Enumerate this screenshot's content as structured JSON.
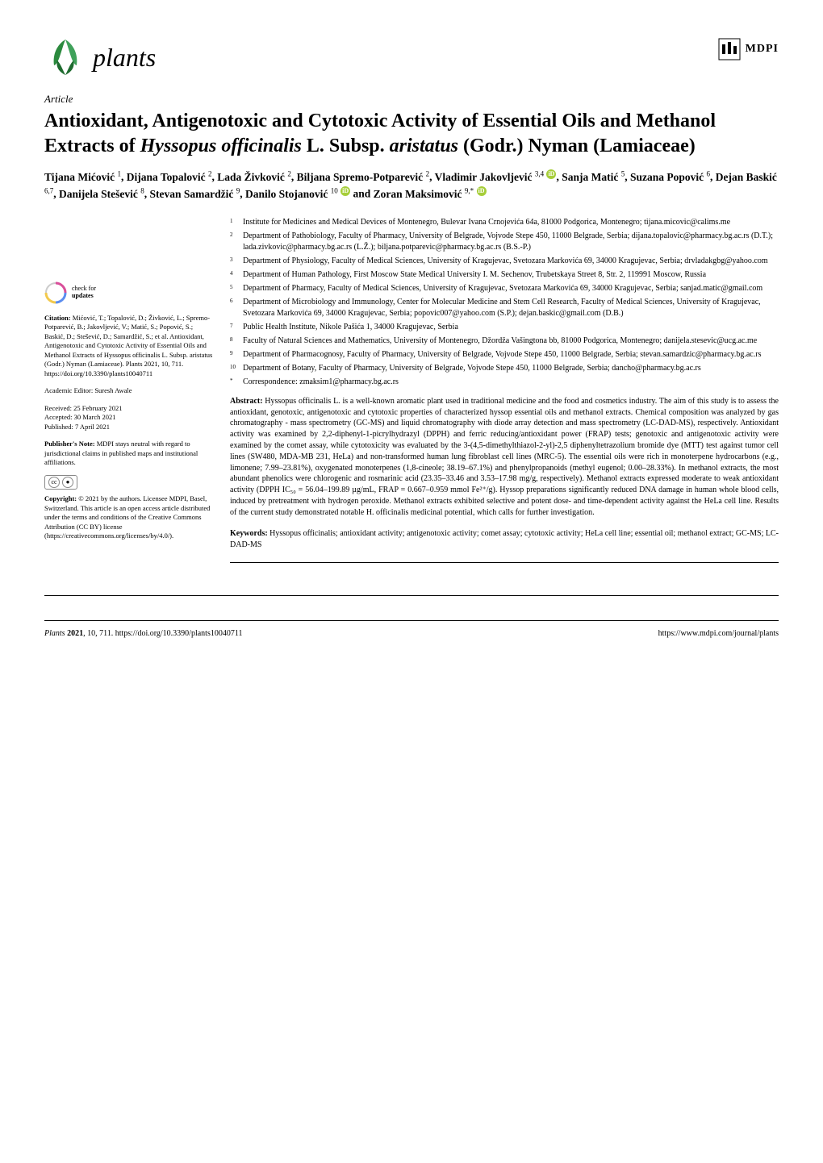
{
  "journal": {
    "name": "plants",
    "publisher": "MDPI"
  },
  "article_type": "Article",
  "title_parts": {
    "pre": "Antioxidant, Antigenotoxic and Cytotoxic Activity of Essential Oils and Methanol Extracts of ",
    "species": "Hyssopus officinalis",
    "mid": " L. Subsp. ",
    "subsp": "aristatus",
    "post": " (Godr.) Nyman (Lamiaceae)"
  },
  "authors_html": "Tijana Mićović ¹, Dijana Topalović ², Lada Živković ², Biljana Spremo-Potparević ², Vladimir Jakovljević ³,⁴ 🟢, Sanja Matić ⁵, Suzana Popović ⁶, Dejan Baskić ⁶,⁷, Danijela Stešević ⁸, Stevan Samardžić ⁹, Danilo Stojanović ¹⁰ 🟢 and Zoran Maksimović ⁹,* 🟢",
  "authors": [
    {
      "name": "Tijana Mićović",
      "aff": "1"
    },
    {
      "name": "Dijana Topalović",
      "aff": "2"
    },
    {
      "name": "Lada Živković",
      "aff": "2"
    },
    {
      "name": "Biljana Spremo-Potparević",
      "aff": "2"
    },
    {
      "name": "Vladimir Jakovljević",
      "aff": "3,4",
      "orcid": true
    },
    {
      "name": "Sanja Matić",
      "aff": "5"
    },
    {
      "name": "Suzana Popović",
      "aff": "6"
    },
    {
      "name": "Dejan Baskić",
      "aff": "6,7"
    },
    {
      "name": "Danijela Stešević",
      "aff": "8"
    },
    {
      "name": "Stevan Samardžić",
      "aff": "9"
    },
    {
      "name": "Danilo Stojanović",
      "aff": "10",
      "orcid": true
    },
    {
      "name": "Zoran Maksimović",
      "aff": "9,*",
      "orcid": true
    }
  ],
  "affiliations": [
    {
      "n": "1",
      "text": "Institute for Medicines and Medical Devices of Montenegro, Bulevar Ivana Crnojevića 64a, 81000 Podgorica, Montenegro; tijana.micovic@calims.me"
    },
    {
      "n": "2",
      "text": "Department of Pathobiology, Faculty of Pharmacy, University of Belgrade, Vojvode Stepe 450, 11000 Belgrade, Serbia; dijana.topalovic@pharmacy.bg.ac.rs (D.T.); lada.zivkovic@pharmacy.bg.ac.rs (L.Ž.); biljana.potparevic@pharmacy.bg.ac.rs (B.S.-P.)"
    },
    {
      "n": "3",
      "text": "Department of Physiology, Faculty of Medical Sciences, University of Kragujevac, Svetozara Markovića 69, 34000 Kragujevac, Serbia; drvladakgbg@yahoo.com"
    },
    {
      "n": "4",
      "text": "Department of Human Pathology, First Moscow State Medical University I. M. Sechenov, Trubetskaya Street 8, Str. 2, 119991 Moscow, Russia"
    },
    {
      "n": "5",
      "text": "Department of Pharmacy, Faculty of Medical Sciences, University of Kragujevac, Svetozara Markovića 69, 34000 Kragujevac, Serbia; sanjad.matic@gmail.com"
    },
    {
      "n": "6",
      "text": "Department of Microbiology and Immunology, Center for Molecular Medicine and Stem Cell Research, Faculty of Medical Sciences, University of Kragujevac, Svetozara Markovića 69, 34000 Kragujevac, Serbia; popovic007@yahoo.com (S.P.); dejan.baskic@gmail.com (D.B.)"
    },
    {
      "n": "7",
      "text": "Public Health Institute, Nikole Pašića 1, 34000 Kragujevac, Serbia"
    },
    {
      "n": "8",
      "text": "Faculty of Natural Sciences and Mathematics, University of Montenegro, Džordža Vašingtona bb, 81000 Podgorica, Montenegro; danijela.stesevic@ucg.ac.me"
    },
    {
      "n": "9",
      "text": "Department of Pharmacognosy, Faculty of Pharmacy, University of Belgrade, Vojvode Stepe 450, 11000 Belgrade, Serbia; stevan.samardzic@pharmacy.bg.ac.rs"
    },
    {
      "n": "10",
      "text": "Department of Botany, Faculty of Pharmacy, University of Belgrade, Vojvode Stepe 450, 11000 Belgrade, Serbia; dancho@pharmacy.bg.ac.rs"
    },
    {
      "n": "*",
      "text": "Correspondence: zmaksim1@pharmacy.bg.ac.rs"
    }
  ],
  "abstract": {
    "label": "Abstract:",
    "text": " Hyssopus officinalis L. is a well-known aromatic plant used in traditional medicine and the food and cosmetics industry. The aim of this study is to assess the antioxidant, genotoxic, antigenotoxic and cytotoxic properties of characterized hyssop essential oils and methanol extracts. Chemical composition was analyzed by gas chromatography - mass spectrometry (GC-MS) and liquid chromatography with diode array detection and mass spectrometry (LC-DAD-MS), respectively. Antioxidant activity was examined by 2,2-diphenyl-1-picrylhydrazyl (DPPH) and ferric reducing/antioxidant power (FRAP) tests; genotoxic and antigenotoxic activity were examined by the comet assay, while cytotoxicity was evaluated by the 3-(4,5-dimethylthiazol-2-yl)-2,5 diphenyltetrazolium bromide dye (MTT) test against tumor cell lines (SW480, MDA-MB 231, HeLa) and non-transformed human lung fibroblast cell lines (MRC-5). The essential oils were rich in monoterpene hydrocarbons (e.g., limonene; 7.99–23.81%), oxygenated monoterpenes (1,8-cineole; 38.19–67.1%) and phenylpropanoids (methyl eugenol; 0.00–28.33%). In methanol extracts, the most abundant phenolics were chlorogenic and rosmarinic acid (23.35–33.46 and 3.53–17.98 mg/g, respectively). Methanol extracts expressed moderate to weak antioxidant activity (DPPH IC₅₀ = 56.04–199.89 µg/mL, FRAP = 0.667–0.959 mmol Fe²⁺/g). Hyssop preparations significantly reduced DNA damage in human whole blood cells, induced by pretreatment with hydrogen peroxide. Methanol extracts exhibited selective and potent dose- and time-dependent activity against the HeLa cell line. Results of the current study demonstrated notable H. officinalis medicinal potential, which calls for further investigation."
  },
  "keywords": {
    "label": "Keywords:",
    "text": " Hyssopus officinalis; antioxidant activity; antigenotoxic activity; comet assay; cytotoxic activity; HeLa cell line; essential oil; methanol extract; GC-MS; LC-DAD-MS"
  },
  "sidebar": {
    "check_updates": {
      "check": "check for",
      "updates": "updates"
    },
    "citation_label": "Citation:",
    "citation": " Mićović, T.; Topalović, D.; Živković, L.; Spremo-Potparević, B.; Jakovljević, V.; Matić, S.; Popović, S.; Baskić, D.; Stešević, D.; Samardžić, S.; et al. Antioxidant, Antigenotoxic and Cytotoxic Activity of Essential Oils and Methanol Extracts of Hyssopus officinalis L. Subsp. aristatus (Godr.) Nyman (Lamiaceae). Plants 2021, 10, 711. https://doi.org/10.3390/plants10040711",
    "editor_label": "Academic Editor: ",
    "editor": "Suresh Awale",
    "dates": {
      "received_label": "Received: ",
      "received": "25 February 2021",
      "accepted_label": "Accepted: ",
      "accepted": "30 March 2021",
      "published_label": "Published: ",
      "published": "7 April 2021"
    },
    "pubnote_label": "Publisher's Note:",
    "pubnote": " MDPI stays neutral with regard to jurisdictional claims in published maps and institutional affiliations.",
    "copyright_label": "Copyright:",
    "copyright": " © 2021 by the authors. Licensee MDPI, Basel, Switzerland. This article is an open access article distributed under the terms and conditions of the Creative Commons Attribution (CC BY) license (https://creativecommons.org/licenses/by/4.0/)."
  },
  "footer": {
    "left_italic": "Plants ",
    "left_bold": "2021",
    "left_rest": ", 10, 711. https://doi.org/10.3390/plants10040711",
    "right": "https://www.mdpi.com/journal/plants"
  },
  "colors": {
    "leaf": "#2b8a3e",
    "orcid": "#a6ce39",
    "text": "#000000",
    "bg": "#ffffff"
  },
  "typography": {
    "title_fontsize": 24,
    "body_fontsize": 10,
    "sidebar_fontsize": 8.5,
    "authors_fontsize": 13.5,
    "footer_fontsize": 10
  }
}
